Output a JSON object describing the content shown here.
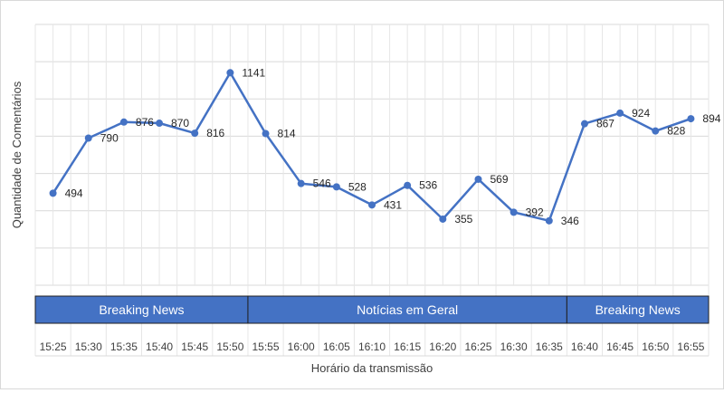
{
  "chart_data": {
    "type": "line",
    "xlabel": "Horário da transmissão",
    "ylabel": "Quantidade de Comentários",
    "ylim": [
      0,
      1400
    ],
    "grid": true,
    "categories": [
      "15:25",
      "15:30",
      "15:35",
      "15:40",
      "15:45",
      "15:50",
      "15:55",
      "16:00",
      "16:05",
      "16:10",
      "16:15",
      "16:20",
      "16:25",
      "16:30",
      "16:35",
      "16:40",
      "16:45",
      "16:50",
      "16:55"
    ],
    "series": [
      {
        "values": [
          494,
          790,
          876,
          870,
          816,
          1141,
          814,
          546,
          528,
          431,
          536,
          355,
          569,
          392,
          346,
          867,
          924,
          828,
          894
        ],
        "color": "#4472c4"
      }
    ],
    "segments": [
      {
        "label": "Breaking News",
        "start": "15:25",
        "end": "15:50"
      },
      {
        "label": "Notícias em Geral",
        "start": "15:55",
        "end": "16:35"
      },
      {
        "label": "Breaking News",
        "start": "16:40",
        "end": "16:55"
      }
    ],
    "segment_color": "#4472c4"
  }
}
